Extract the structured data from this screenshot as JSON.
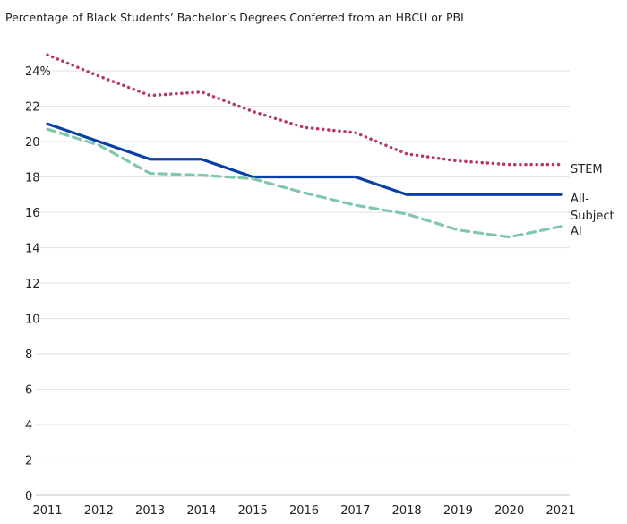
{
  "chart_data": {
    "type": "line",
    "title": "Percentage of Black Students’ Bachelor’s Degrees Conferred from an HBCU or PBI",
    "xlabel": "",
    "ylabel": "",
    "x": [
      2011,
      2012,
      2013,
      2014,
      2015,
      2016,
      2017,
      2018,
      2019,
      2020,
      2021
    ],
    "ylim": [
      0,
      24
    ],
    "yticks": [
      0,
      2,
      4,
      6,
      8,
      10,
      12,
      14,
      16,
      18,
      20,
      22,
      24
    ],
    "ytick_labels": [
      "0",
      "2",
      "4",
      "6",
      "8",
      "10",
      "12",
      "14",
      "16",
      "18",
      "20",
      "22",
      "24%"
    ],
    "grid": true,
    "legend": "direct labels at right end of lines",
    "series": [
      {
        "name": "STEM",
        "color": "#b5386a",
        "style": "dotted",
        "values": [
          24.9,
          23.7,
          22.6,
          22.8,
          21.7,
          20.8,
          20.5,
          19.3,
          18.9,
          18.7,
          18.7
        ]
      },
      {
        "name": "All-Subject",
        "color": "#0a3fa6",
        "style": "solid",
        "values": [
          21,
          20,
          19,
          19,
          18,
          18,
          18,
          17,
          17,
          17,
          17
        ]
      },
      {
        "name": "AI",
        "color": "#7fc8a9",
        "style": "dashed",
        "values": [
          20.7,
          19.8,
          18.2,
          18.1,
          17.9,
          17.1,
          16.4,
          15.9,
          15.0,
          14.6,
          15.2
        ]
      }
    ]
  }
}
